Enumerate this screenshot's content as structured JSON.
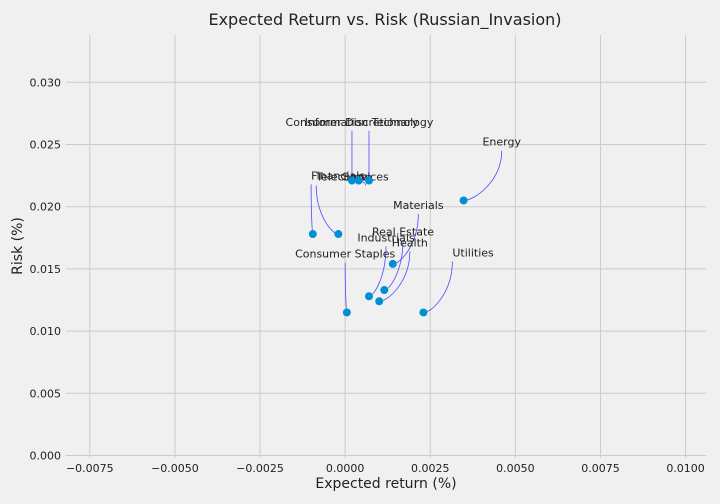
{
  "chart_data": {
    "type": "scatter",
    "title": "Expected Return vs. Risk (Russian_Invasion)",
    "xlabel": "Expected return (%)",
    "ylabel": "Risk (%)",
    "xlim": [
      -0.0082,
      0.0106
    ],
    "ylim": [
      -0.0002,
      0.0338
    ],
    "xticks": [
      -0.0075,
      -0.005,
      -0.0025,
      0.0,
      0.0025,
      0.005,
      0.0075,
      0.01
    ],
    "xtick_labels": [
      "−0.0075",
      "−0.0050",
      "−0.0025",
      "0.0000",
      "0.0025",
      "0.0050",
      "0.0075",
      "0.0100"
    ],
    "yticks": [
      0.0,
      0.005,
      0.01,
      0.015,
      0.02,
      0.025,
      0.03
    ],
    "ytick_labels": [
      "0.000",
      "0.005",
      "0.010",
      "0.015",
      "0.020",
      "0.025",
      "0.030"
    ],
    "grid": true,
    "point_color": "#008fd5",
    "leader_color": "#4a4aff",
    "points": [
      {
        "name": "Energy",
        "x": 0.00348,
        "y": 0.0205,
        "lx": 0.0046,
        "ly": 0.0249,
        "anchor": "middle"
      },
      {
        "name": "Consumer Discretionary",
        "x": 0.0002,
        "y": 0.0221,
        "lx": 0.0002,
        "ly": 0.0265,
        "anchor": "middle"
      },
      {
        "name": "Information Technology",
        "x": 0.0007,
        "y": 0.0221,
        "lx": 0.0007,
        "ly": 0.0265,
        "anchor": "middle"
      },
      {
        "name": "Financials",
        "x": -0.00095,
        "y": 0.0178,
        "lx": -0.001,
        "ly": 0.0222,
        "anchor": "start"
      },
      {
        "name": "Telecomm",
        "x": -0.0002,
        "y": 0.0178,
        "lx": -0.00085,
        "ly": 0.0221,
        "anchor": "start"
      },
      {
        "name": "Services",
        "x": 0.0004,
        "y": 0.0221,
        "lx": 0.0006,
        "ly": 0.0221,
        "anchor": "middle"
      },
      {
        "name": "Materials",
        "x": 0.0014,
        "y": 0.0154,
        "lx": 0.00215,
        "ly": 0.0198,
        "anchor": "middle"
      },
      {
        "name": "Real Estate",
        "x": 0.00115,
        "y": 0.0133,
        "lx": 0.0017,
        "ly": 0.0177,
        "anchor": "middle"
      },
      {
        "name": "Industrials",
        "x": 0.0007,
        "y": 0.0128,
        "lx": 0.0012,
        "ly": 0.0172,
        "anchor": "middle"
      },
      {
        "name": "Health",
        "x": 0.001,
        "y": 0.0124,
        "lx": 0.0019,
        "ly": 0.0168,
        "anchor": "middle"
      },
      {
        "name": "Consumer Staples",
        "x": 5e-05,
        "y": 0.0115,
        "lx": 0.0,
        "ly": 0.0159,
        "anchor": "middle"
      },
      {
        "name": "Utilities",
        "x": 0.0023,
        "y": 0.0115,
        "lx": 0.00315,
        "ly": 0.016,
        "anchor": "start"
      }
    ]
  }
}
